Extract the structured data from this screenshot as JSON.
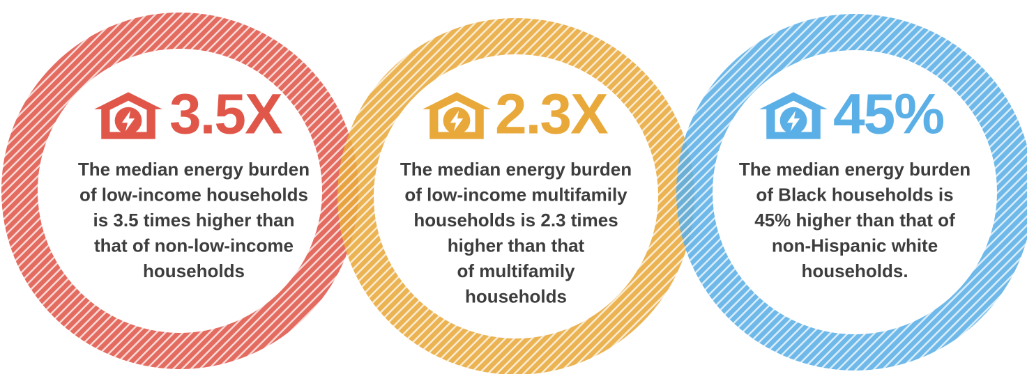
{
  "items": [
    {
      "stat": "3.5X",
      "color": "#e0574a",
      "lines": [
        "The median energy burden",
        "of low-income households",
        "is 3.5 times higher than",
        "that of non-low-income",
        "households"
      ]
    },
    {
      "stat": "2.3X",
      "color": "#e8a93a",
      "lines": [
        "The median energy burden",
        "of low-income multifamily",
        "households is 2.3 times",
        "higher than that",
        "of multifamily",
        "households"
      ]
    },
    {
      "stat": "45%",
      "color": "#5aafe6",
      "lines": [
        "The median energy burden",
        "of Black households is",
        "45% higher than that of",
        "non-Hispanic white",
        "households."
      ]
    }
  ]
}
